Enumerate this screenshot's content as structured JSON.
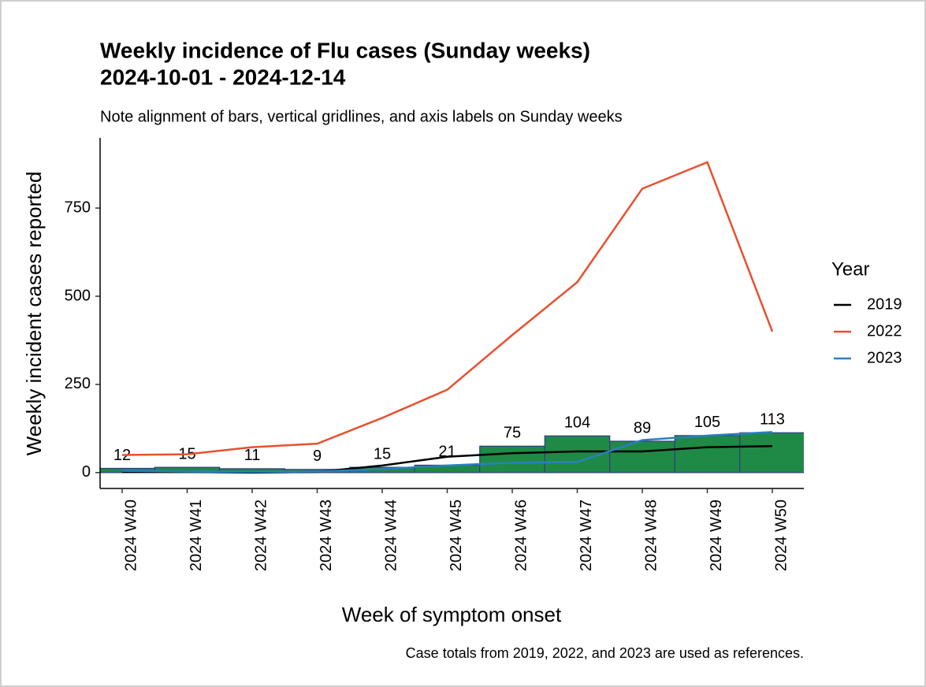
{
  "chart_data": {
    "type": "bar",
    "title": [
      "Weekly incidence of Flu cases (Sunday weeks)",
      "2024-10-01 - 2024-12-14"
    ],
    "subtitle": "Note alignment of bars, vertical gridlines, and axis labels on Sunday weeks",
    "x_label": "Week of symptom onset",
    "y_label": "Weekly incident cases reported",
    "caption": "Case totals from 2019, 2022, and 2023 are used as references.",
    "legend_title": "Year",
    "legend_position": "right",
    "grid": false,
    "categories": [
      "2024 W40",
      "2024 W41",
      "2024 W42",
      "2024 W43",
      "2024 W44",
      "2024 W45",
      "2024 W46",
      "2024 W47",
      "2024 W48",
      "2024 W49",
      "2024 W50"
    ],
    "values": [
      12,
      15,
      11,
      9,
      15,
      21,
      75,
      104,
      89,
      105,
      113
    ],
    "color": "#1f8a45",
    "edge_color": "#2f3f7f",
    "series": [
      {
        "name": "2019",
        "color": "#000000",
        "values": [
          2,
          2,
          0,
          2,
          20,
          45,
          55,
          60,
          60,
          72,
          75
        ]
      },
      {
        "name": "2022",
        "color": "#e8502f",
        "values": [
          50,
          52,
          72,
          82,
          155,
          235,
          390,
          540,
          805,
          880,
          400
        ]
      },
      {
        "name": "2023",
        "color": "#2b7fc0",
        "values": [
          5,
          3,
          2,
          3,
          10,
          20,
          28,
          30,
          92,
          105,
          115
        ]
      }
    ],
    "ylim": [
      -45,
      949
    ],
    "yticks": [
      0,
      250,
      500,
      750
    ]
  }
}
